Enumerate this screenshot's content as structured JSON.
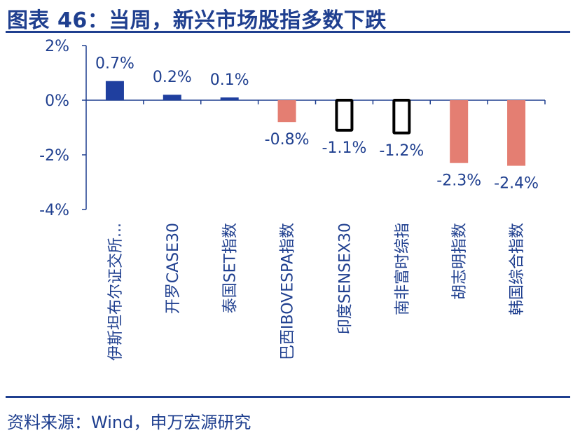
{
  "figure": {
    "title": "图表 46：当周，新兴市场股指多数下跌",
    "source": "资料来源：Wind，申万宏源研究"
  },
  "colors": {
    "positive": "#1f3f9f",
    "negative": "#e47e72",
    "axis": "#1f3f8f",
    "text": "#1f3f8f"
  },
  "chart_data": {
    "type": "bar",
    "categories": [
      "伊斯坦布尔证交所...",
      "开罗CASE30",
      "泰国SET指数",
      "巴西IBOVESPA指数",
      "印度SENSEX30",
      "南非富时综指",
      "胡志明指数",
      "韩国综合指数"
    ],
    "values": [
      0.7,
      0.2,
      0.1,
      -0.8,
      -1.1,
      -1.2,
      -2.3,
      -2.4
    ],
    "data_labels": [
      "0.7%",
      "0.2%",
      "0.1%",
      "-0.8%",
      "-1.1%",
      "-1.2%",
      "-2.3%",
      "-2.4%"
    ],
    "bar_styles": [
      "filled",
      "filled",
      "filled",
      "filled",
      "outlined",
      "outlined",
      "filled",
      "filled"
    ],
    "ylim": [
      -4,
      2
    ],
    "yticks": [
      2,
      0,
      -2,
      -4
    ],
    "ytick_labels": [
      "2%",
      "0%",
      "-2%",
      "-4%"
    ],
    "grid": false,
    "legend": "none"
  }
}
